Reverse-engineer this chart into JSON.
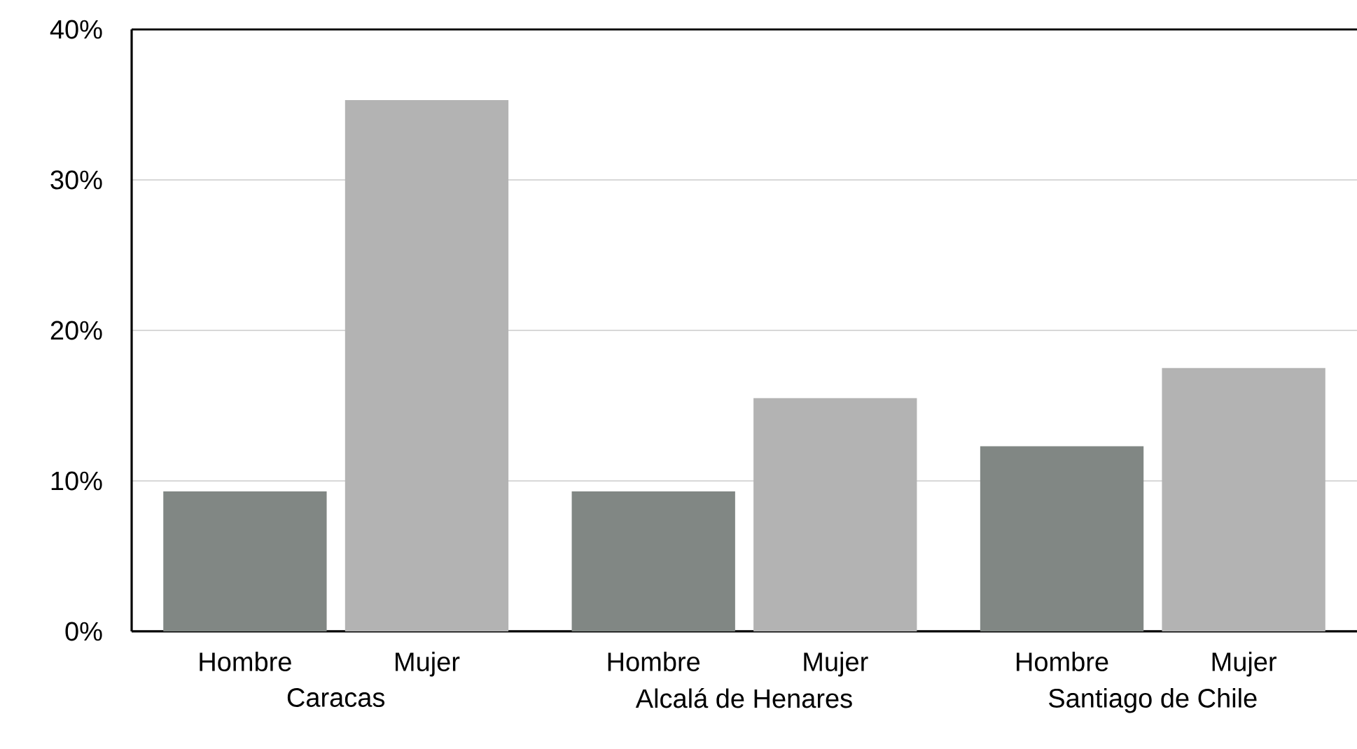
{
  "chart_data": {
    "type": "bar",
    "categories": [
      "Caracas",
      "Alcalá de Henares",
      "Santiago de Chile"
    ],
    "series": [
      {
        "name": "Hombre",
        "color": "#818784",
        "values": [
          9.3,
          9.3,
          12.3
        ]
      },
      {
        "name": "Mujer",
        "color": "#b3b3b3",
        "values": [
          35.3,
          15.5,
          17.5
        ]
      }
    ],
    "ylim": [
      0,
      40
    ],
    "yticks": [
      {
        "value": 0,
        "label": "0%"
      },
      {
        "value": 10,
        "label": "10%"
      },
      {
        "value": 20,
        "label": "20%"
      },
      {
        "value": 30,
        "label": "30%"
      },
      {
        "value": 40,
        "label": "40%"
      }
    ],
    "grid": "y",
    "legend": false
  }
}
